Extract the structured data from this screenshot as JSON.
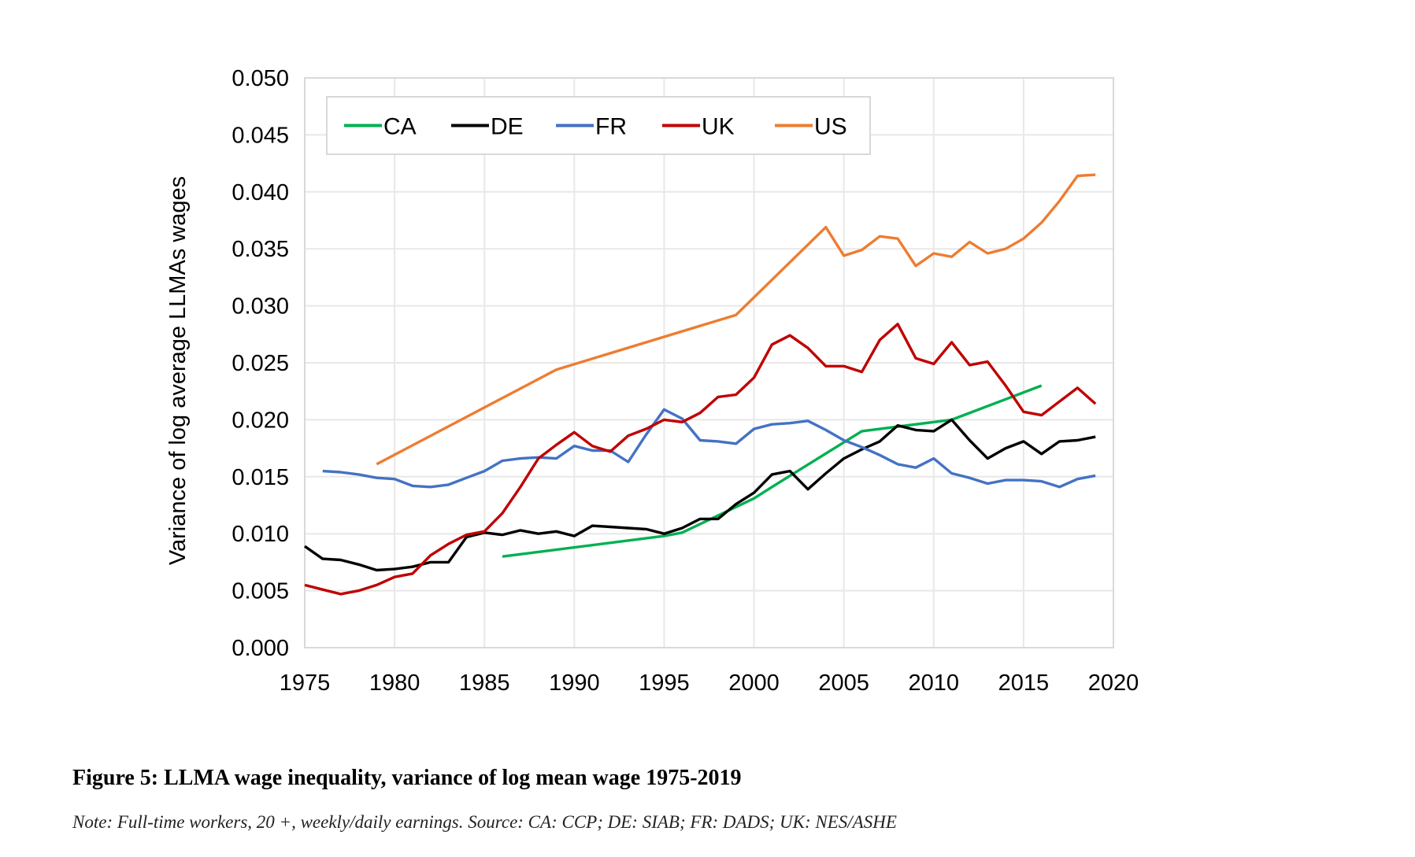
{
  "chart_data": {
    "type": "line",
    "title": "",
    "xlabel": "",
    "ylabel": "Variance of log average LLMAs wages",
    "xlim": [
      1975,
      2020
    ],
    "ylim": [
      0,
      0.05
    ],
    "x_ticks": [
      "1975",
      "1980",
      "1985",
      "1990",
      "1995",
      "2000",
      "2005",
      "2010",
      "2015",
      "2020"
    ],
    "y_ticks": [
      "0.000",
      "0.005",
      "0.010",
      "0.015",
      "0.020",
      "0.025",
      "0.030",
      "0.035",
      "0.040",
      "0.045",
      "0.050"
    ],
    "grid": true,
    "legend_position": "top-left",
    "series": [
      {
        "name": "CA",
        "color": "#00b050",
        "x": [
          1986,
          1995,
          1996,
          2000,
          2001,
          2006,
          2011,
          2016
        ],
        "y": [
          0.008,
          0.0098,
          0.0101,
          0.0131,
          0.0141,
          0.019,
          0.02,
          0.023
        ]
      },
      {
        "name": "DE",
        "color": "#000000",
        "x": [
          1975,
          1976,
          1977,
          1978,
          1979,
          1980,
          1981,
          1982,
          1983,
          1984,
          1985,
          1986,
          1987,
          1988,
          1989,
          1990,
          1991,
          1992,
          1993,
          1994,
          1995,
          1996,
          1997,
          1998,
          1999,
          2000,
          2001,
          2002,
          2003,
          2004,
          2005,
          2006,
          2007,
          2008,
          2009,
          2010,
          2011,
          2012,
          2013,
          2014,
          2015,
          2016,
          2017,
          2018,
          2019
        ],
        "y": [
          0.0089,
          0.0078,
          0.0077,
          0.0073,
          0.0068,
          0.0069,
          0.0071,
          0.0075,
          0.0075,
          0.0097,
          0.0101,
          0.0099,
          0.0103,
          0.01,
          0.0102,
          0.0098,
          0.0107,
          0.0106,
          0.0105,
          0.0104,
          0.01,
          0.0105,
          0.0113,
          0.0113,
          0.0126,
          0.0136,
          0.0152,
          0.0155,
          0.0139,
          0.0153,
          0.0166,
          0.0174,
          0.0181,
          0.0195,
          0.0191,
          0.019,
          0.02,
          0.0182,
          0.0166,
          0.0175,
          0.0181,
          0.017,
          0.0181,
          0.0182,
          0.0185
        ]
      },
      {
        "name": "FR",
        "color": "#4472c4",
        "x": [
          1976,
          1977,
          1978,
          1979,
          1980,
          1981,
          1982,
          1983,
          1984,
          1985,
          1986,
          1987,
          1988,
          1989,
          1990,
          1991,
          1992,
          1993,
          1994,
          1995,
          1996,
          1997,
          1998,
          1999,
          2000,
          2001,
          2002,
          2003,
          2004,
          2005,
          2006,
          2007,
          2008,
          2009,
          2010,
          2011,
          2012,
          2013,
          2014,
          2015,
          2016,
          2017,
          2018,
          2019
        ],
        "y": [
          0.0155,
          0.0154,
          0.0152,
          0.0149,
          0.0148,
          0.0142,
          0.0141,
          0.0143,
          0.0149,
          0.0155,
          0.0164,
          0.0166,
          0.0167,
          0.0166,
          0.0177,
          0.0173,
          0.0173,
          0.0163,
          0.0187,
          0.0209,
          0.0201,
          0.0182,
          0.0181,
          0.0179,
          0.0192,
          0.0196,
          0.0197,
          0.0199,
          0.0191,
          0.0182,
          0.0176,
          0.0169,
          0.0161,
          0.0158,
          0.0166,
          0.0153,
          0.0149,
          0.0144,
          0.0147,
          0.0147,
          0.0146,
          0.0141,
          0.0148,
          0.0151
        ]
      },
      {
        "name": "UK",
        "color": "#c00000",
        "x": [
          1975,
          1976,
          1977,
          1978,
          1979,
          1980,
          1981,
          1982,
          1983,
          1984,
          1985,
          1986,
          1987,
          1988,
          1989,
          1990,
          1991,
          1992,
          1993,
          1994,
          1995,
          1996,
          1997,
          1998,
          1999,
          2000,
          2001,
          2002,
          2003,
          2004,
          2005,
          2006,
          2007,
          2008,
          2009,
          2010,
          2011,
          2012,
          2013,
          2014,
          2015,
          2016,
          2017,
          2018,
          2019
        ],
        "y": [
          0.0055,
          0.0051,
          0.0047,
          0.005,
          0.0055,
          0.0062,
          0.0065,
          0.0081,
          0.0091,
          0.0099,
          0.0102,
          0.0118,
          0.0141,
          0.0166,
          0.0178,
          0.0189,
          0.0177,
          0.0172,
          0.0186,
          0.0192,
          0.02,
          0.0198,
          0.0206,
          0.022,
          0.0222,
          0.0237,
          0.0266,
          0.0274,
          0.0263,
          0.0247,
          0.0247,
          0.0242,
          0.027,
          0.0284,
          0.0254,
          0.0249,
          0.0268,
          0.0248,
          0.0251,
          0.023,
          0.0207,
          0.0204,
          0.0216,
          0.0228,
          0.0214
        ]
      },
      {
        "name": "US",
        "color": "#ed7d31",
        "x": [
          1979,
          1989,
          1999,
          2004,
          2005,
          2006,
          2007,
          2008,
          2009,
          2010,
          2011,
          2012,
          2013,
          2014,
          2015,
          2016,
          2017,
          2018,
          2019
        ],
        "y": [
          0.0161,
          0.0244,
          0.0292,
          0.0369,
          0.0344,
          0.0349,
          0.0361,
          0.0359,
          0.0335,
          0.0346,
          0.0343,
          0.0356,
          0.0346,
          0.035,
          0.0359,
          0.0373,
          0.0392,
          0.0414,
          0.0415
        ]
      }
    ]
  },
  "caption": {
    "title": "Figure 5: LLMA wage inequality, variance of log mean wage 1975-2019",
    "note": "Note: Full-time workers, 20 +, weekly/daily earnings. Source: CA: CCP; DE: SIAB; FR: DADS; UK: NES/ASHE"
  }
}
